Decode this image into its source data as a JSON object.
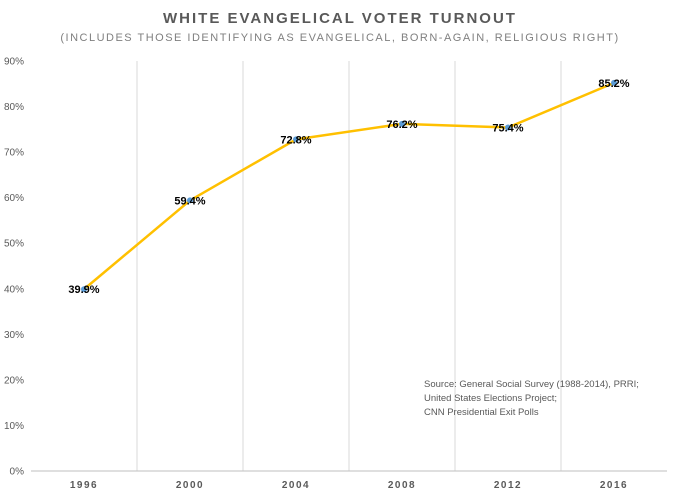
{
  "chart_data": {
    "type": "line",
    "title": "WHITE EVANGELICAL VOTER TURNOUT",
    "subtitle": "(INCLUDES THOSE IDENTIFYING AS EVANGELICAL, BORN-AGAIN, RELIGIOUS RIGHT)",
    "categories": [
      "1996",
      "2000",
      "2004",
      "2008",
      "2012",
      "2016"
    ],
    "series": [
      {
        "values": [
          39.9,
          59.4,
          72.8,
          76.2,
          75.4,
          85.2
        ],
        "labels": [
          "39.9%",
          "59.4%",
          "72.8%",
          "76.2%",
          "75.4%",
          "85.2%"
        ]
      }
    ],
    "ylim": [
      0,
      90
    ],
    "yticks": [
      0,
      10,
      20,
      30,
      40,
      50,
      60,
      70,
      80,
      90
    ],
    "ytick_labels": [
      "0%",
      "10%",
      "20%",
      "30%",
      "40%",
      "50%",
      "60%",
      "70%",
      "80%",
      "90%"
    ],
    "xlabel": "",
    "ylabel": "",
    "grid": "vertical",
    "line_color": "#FFC000",
    "marker_color": "#5B9BD5",
    "source_note": [
      "Source: General Social Survey (1988-2014), PRRI;",
      "United States Elections Project;",
      "CNN Presidential Exit Polls"
    ]
  }
}
